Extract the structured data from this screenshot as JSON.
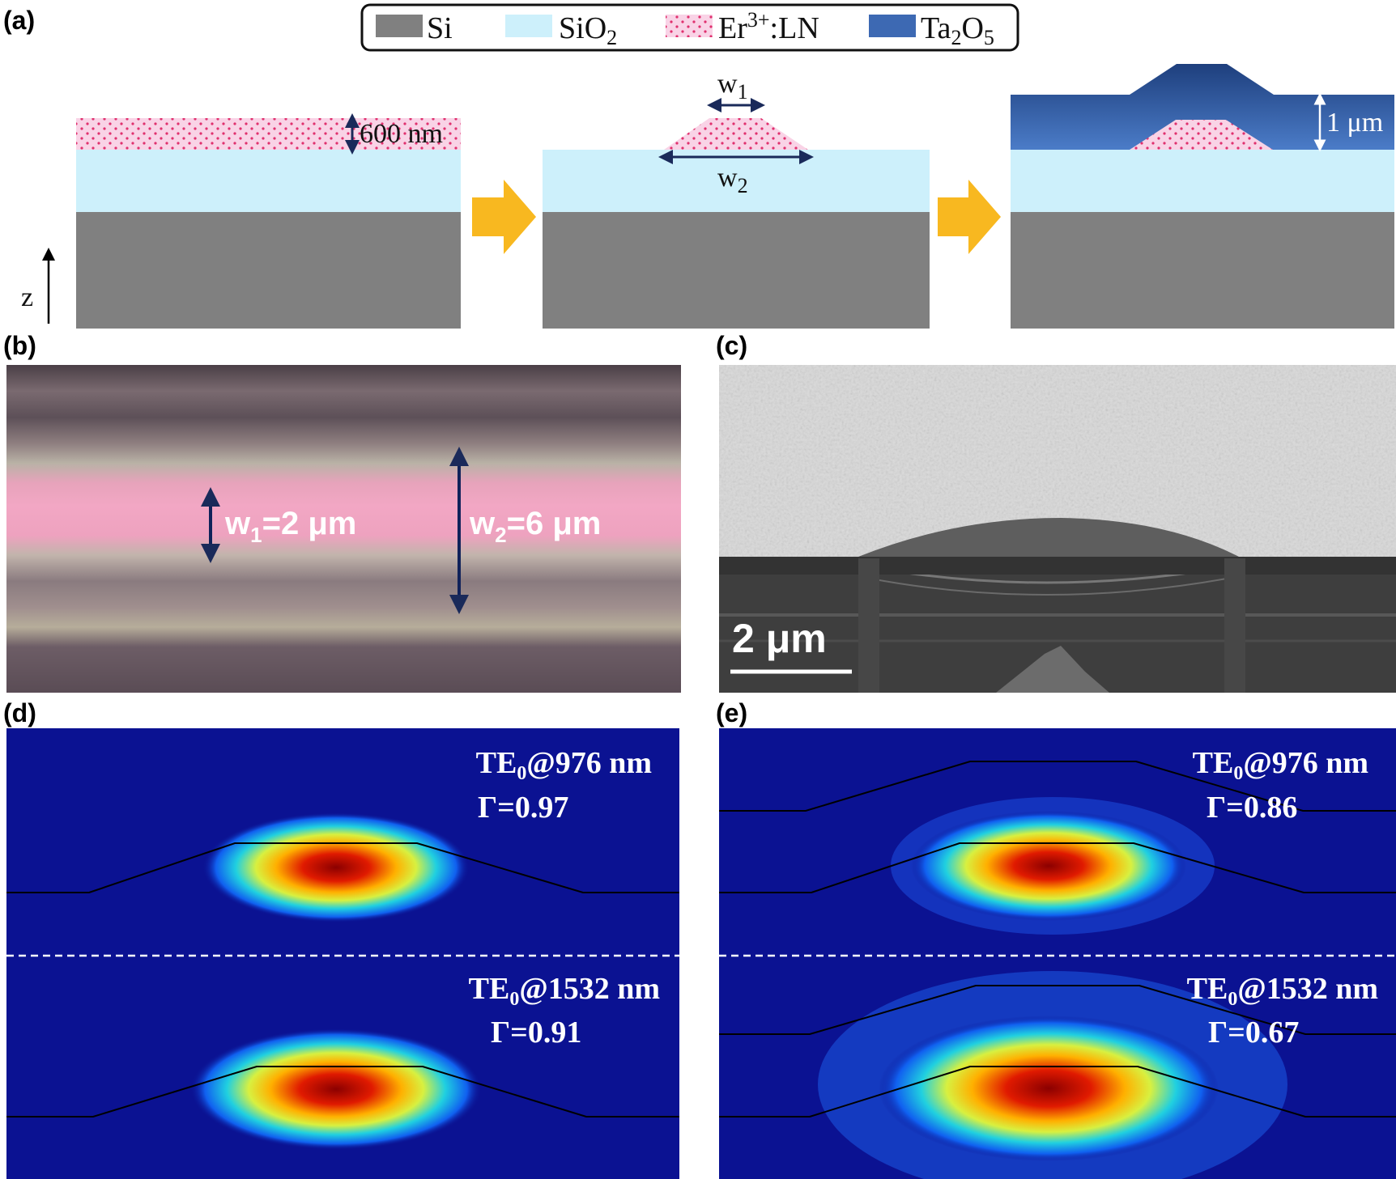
{
  "figure": {
    "panel_labels": {
      "a": "(a)",
      "b": "(b)",
      "c": "(c)",
      "d": "(d)",
      "e": "(e)"
    },
    "legend": {
      "si": "Si",
      "sio2_main": "SiO",
      "sio2_sub": "2",
      "ln_main": "Er",
      "ln_sup": "3+",
      "ln_tail": ":LN",
      "ta_main": "Ta",
      "ta_sub1": "2",
      "ta_mid": "O",
      "ta_sub2": "5"
    },
    "panel_a": {
      "film_thickness": "600 nm",
      "w1_main": "w",
      "w1_sub": "1",
      "w2_main": "w",
      "w2_sub": "2",
      "cladding_thickness": "1 μm",
      "axis_label": "z"
    },
    "panel_b": {
      "w1_main": "w",
      "w1_sub": "1",
      "w1_value": "=2 μm",
      "w2_main": "w",
      "w2_sub": "2",
      "w2_value": "=6 μm"
    },
    "panel_c": {
      "scale_bar": "2 μm"
    },
    "panel_d": {
      "top_mode_main": "TE",
      "top_mode_sub": "0",
      "top_mode_tail": "@976 nm",
      "top_gamma": "Γ=0.97",
      "bottom_mode_main": "TE",
      "bottom_mode_sub": "0",
      "bottom_mode_tail": "@1532 nm",
      "bottom_gamma": "Γ=0.91"
    },
    "panel_e": {
      "top_mode_main": "TE",
      "top_mode_sub": "0",
      "top_mode_tail": "@976 nm",
      "top_gamma": "Γ=0.86",
      "bottom_mode_main": "TE",
      "bottom_mode_sub": "0",
      "bottom_mode_tail": "@1532 nm",
      "bottom_gamma": "Γ=0.67"
    },
    "colors": {
      "si": "#808080",
      "sio2": "#cdf0fb",
      "ln": "#f7c7de",
      "ta2o5": "#3d69b3",
      "arrow": "#f8b820",
      "field_bg": "#0b1292"
    }
  }
}
